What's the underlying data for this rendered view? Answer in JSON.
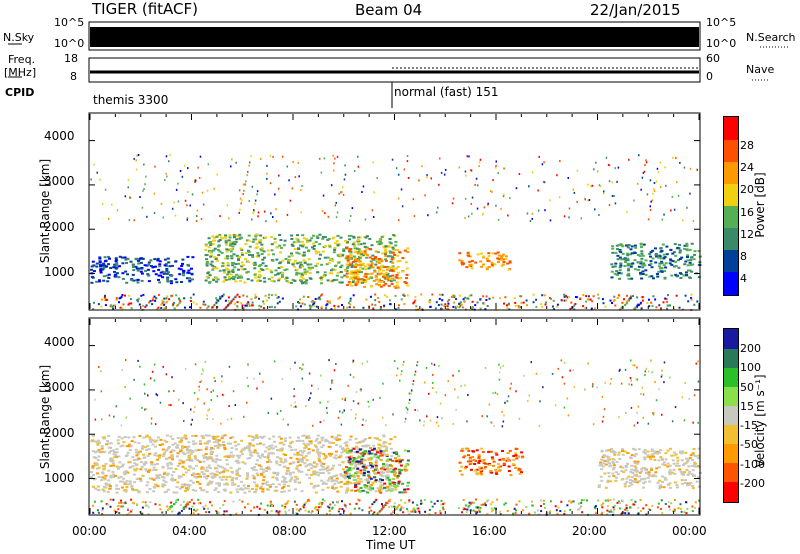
{
  "header": {
    "station": "TIGER (fitACF)",
    "beam": "Beam 04",
    "date": "22/Jan/2015"
  },
  "side_labels": {
    "nsky": "N.Sky",
    "nsearch": "N.Search",
    "freq_line1": "Freq.",
    "freq_line2": "[MHz]",
    "nave": "Nave",
    "cpid": "CPID"
  },
  "cpid_labels": {
    "first": "themis 3300",
    "second": "normal (fast) 151"
  },
  "axis_text": {
    "y_label": "Slant Range [km]",
    "x_label": "Time UT"
  },
  "colors": {
    "power": [
      "#0000ff",
      "#00409a",
      "#3a8a6a",
      "#55b055",
      "#f0d010",
      "#ff9900",
      "#ff5000",
      "#ff0000"
    ],
    "velocity": [
      "#1a1aa0",
      "#2a7a5a",
      "#2bbf2b",
      "#8adf4a",
      "#c8c8be",
      "#f0c030",
      "#ff9a00",
      "#ff5500",
      "#ff0000"
    ],
    "ground": "#c8c8be"
  },
  "chart_data": [
    {
      "type": "line",
      "name": "top-status-panel",
      "x_range_hours": [
        0,
        24
      ],
      "left_ticks_nsky": [
        "10^5",
        "10^0"
      ],
      "right_ticks_nsearch": [
        "10^5",
        "10^0"
      ],
      "left_ticks_freq": [
        "18",
        "8"
      ],
      "right_ticks_nave": [
        "60",
        "0"
      ],
      "cpid_change_time_hours": 12.0
    },
    {
      "type": "heatmap",
      "name": "power-panel",
      "title": "Power [dB]",
      "ylabel": "Slant Range [km]",
      "ylim": [
        200,
        4600
      ],
      "y_ticks": [
        1000,
        2000,
        3000,
        4000
      ],
      "xlim": [
        0,
        24
      ],
      "colorbar_ticks": [
        "28",
        "24",
        "20",
        "16",
        "12",
        "8",
        "4"
      ],
      "echo_regions": [
        {
          "t_start": 0.0,
          "t_end": 4.0,
          "range_low": 800,
          "range_high": 1400,
          "level": "low"
        },
        {
          "t_start": 4.5,
          "t_end": 12.0,
          "range_low": 800,
          "range_high": 1900,
          "level": "medium-high"
        },
        {
          "t_start": 10.0,
          "t_end": 12.5,
          "range_low": 700,
          "range_high": 1600,
          "level": "high"
        },
        {
          "t_start": 14.5,
          "t_end": 16.5,
          "range_low": 1100,
          "range_high": 1500,
          "level": "high"
        },
        {
          "t_start": 20.5,
          "t_end": 24.0,
          "range_low": 900,
          "range_high": 1700,
          "level": "medium"
        }
      ]
    },
    {
      "type": "heatmap",
      "name": "velocity-panel",
      "title": "Velocity [m s⁻¹]",
      "ylabel": "Slant Range [km]",
      "ylim": [
        200,
        4600
      ],
      "y_ticks": [
        1000,
        2000,
        3000,
        4000
      ],
      "xlim": [
        0,
        24
      ],
      "x_ticks": [
        "00:00",
        "04:00",
        "08:00",
        "12:00",
        "16:00",
        "20:00",
        "00:00"
      ],
      "xlabel": "Time UT",
      "colorbar_ticks": [
        "200",
        "100",
        "50",
        "15",
        "-15",
        "-50",
        "-100",
        "-200"
      ],
      "echo_regions": [
        {
          "t_start": 0.0,
          "t_end": 12.0,
          "range_low": 700,
          "range_high": 2000,
          "level": "ground/near-zero"
        },
        {
          "t_start": 10.0,
          "t_end": 12.5,
          "range_low": 700,
          "range_high": 1700,
          "level": "mixed positive"
        },
        {
          "t_start": 14.5,
          "t_end": 17.0,
          "range_low": 1100,
          "range_high": 1700,
          "level": "negative"
        },
        {
          "t_start": 20.0,
          "t_end": 24.0,
          "range_low": 800,
          "range_high": 1700,
          "level": "ground/near-zero"
        }
      ]
    }
  ]
}
